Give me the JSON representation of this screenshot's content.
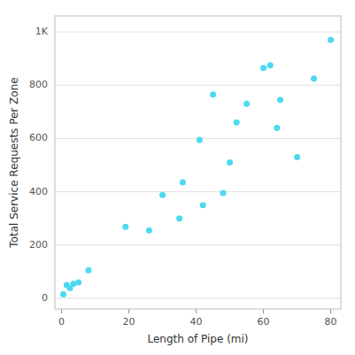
{
  "chart_data": {
    "type": "scatter",
    "x": [
      0.5,
      1.5,
      2.5,
      3.5,
      5.0,
      8.0,
      19.0,
      26.0,
      30.0,
      35.0,
      36.0,
      41.0,
      42.0,
      45.0,
      48.0,
      50.0,
      52.0,
      55.0,
      60.0,
      62.0,
      64.0,
      65.0,
      70.0,
      75.0,
      80.0
    ],
    "y": [
      15,
      50,
      38,
      55,
      60,
      105,
      268,
      255,
      388,
      300,
      435,
      595,
      350,
      765,
      395,
      510,
      660,
      730,
      865,
      875,
      640,
      745,
      530,
      825,
      970
    ],
    "color": "#4dd9f0",
    "xlabel": "Length of Pipe (mi)",
    "ylabel": "Total Service Requests Per Zone",
    "xlim": [
      -2,
      83
    ],
    "ylim": [
      -40,
      1060
    ],
    "xticks": [
      0,
      20,
      40,
      60,
      80
    ],
    "yticks": [
      0,
      200,
      400,
      600,
      800,
      {
        "value": 1000,
        "label": "1K"
      }
    ],
    "grid": true
  }
}
